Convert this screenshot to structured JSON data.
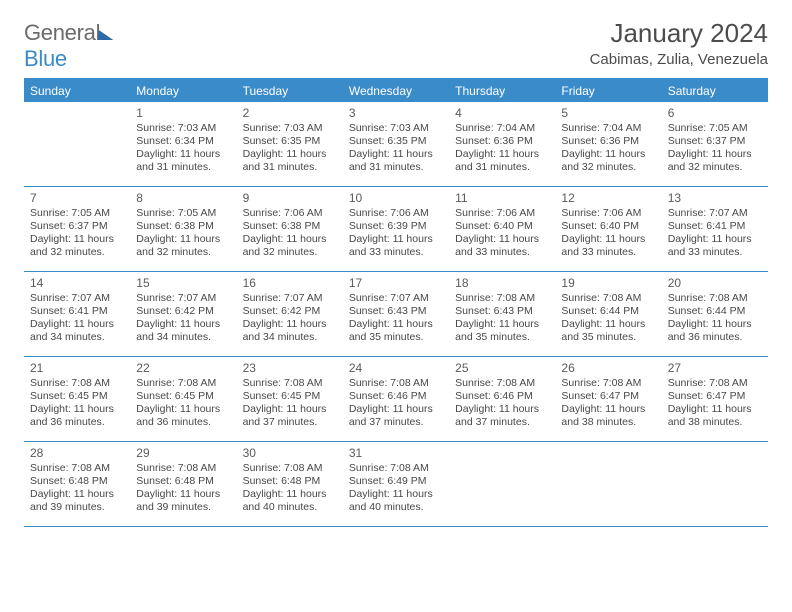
{
  "brand": {
    "general": "General",
    "blue": "Blue"
  },
  "title": "January 2024",
  "location": "Cabimas, Zulia, Venezuela",
  "colors": {
    "header_bg": "#3a8bc9",
    "header_text": "#ffffff",
    "rule": "#3a8bc9",
    "daynum": "#5a5a5a",
    "body_text": "#484848",
    "brand_gray": "#6b6b6b",
    "brand_blue": "#3a8bc9"
  },
  "weekdays": [
    "Sunday",
    "Monday",
    "Tuesday",
    "Wednesday",
    "Thursday",
    "Friday",
    "Saturday"
  ],
  "weeks": [
    [
      {
        "day": "",
        "sunrise": "",
        "sunset": "",
        "daylight": ""
      },
      {
        "day": "1",
        "sunrise": "Sunrise: 7:03 AM",
        "sunset": "Sunset: 6:34 PM",
        "daylight": "Daylight: 11 hours and 31 minutes."
      },
      {
        "day": "2",
        "sunrise": "Sunrise: 7:03 AM",
        "sunset": "Sunset: 6:35 PM",
        "daylight": "Daylight: 11 hours and 31 minutes."
      },
      {
        "day": "3",
        "sunrise": "Sunrise: 7:03 AM",
        "sunset": "Sunset: 6:35 PM",
        "daylight": "Daylight: 11 hours and 31 minutes."
      },
      {
        "day": "4",
        "sunrise": "Sunrise: 7:04 AM",
        "sunset": "Sunset: 6:36 PM",
        "daylight": "Daylight: 11 hours and 31 minutes."
      },
      {
        "day": "5",
        "sunrise": "Sunrise: 7:04 AM",
        "sunset": "Sunset: 6:36 PM",
        "daylight": "Daylight: 11 hours and 32 minutes."
      },
      {
        "day": "6",
        "sunrise": "Sunrise: 7:05 AM",
        "sunset": "Sunset: 6:37 PM",
        "daylight": "Daylight: 11 hours and 32 minutes."
      }
    ],
    [
      {
        "day": "7",
        "sunrise": "Sunrise: 7:05 AM",
        "sunset": "Sunset: 6:37 PM",
        "daylight": "Daylight: 11 hours and 32 minutes."
      },
      {
        "day": "8",
        "sunrise": "Sunrise: 7:05 AM",
        "sunset": "Sunset: 6:38 PM",
        "daylight": "Daylight: 11 hours and 32 minutes."
      },
      {
        "day": "9",
        "sunrise": "Sunrise: 7:06 AM",
        "sunset": "Sunset: 6:38 PM",
        "daylight": "Daylight: 11 hours and 32 minutes."
      },
      {
        "day": "10",
        "sunrise": "Sunrise: 7:06 AM",
        "sunset": "Sunset: 6:39 PM",
        "daylight": "Daylight: 11 hours and 33 minutes."
      },
      {
        "day": "11",
        "sunrise": "Sunrise: 7:06 AM",
        "sunset": "Sunset: 6:40 PM",
        "daylight": "Daylight: 11 hours and 33 minutes."
      },
      {
        "day": "12",
        "sunrise": "Sunrise: 7:06 AM",
        "sunset": "Sunset: 6:40 PM",
        "daylight": "Daylight: 11 hours and 33 minutes."
      },
      {
        "day": "13",
        "sunrise": "Sunrise: 7:07 AM",
        "sunset": "Sunset: 6:41 PM",
        "daylight": "Daylight: 11 hours and 33 minutes."
      }
    ],
    [
      {
        "day": "14",
        "sunrise": "Sunrise: 7:07 AM",
        "sunset": "Sunset: 6:41 PM",
        "daylight": "Daylight: 11 hours and 34 minutes."
      },
      {
        "day": "15",
        "sunrise": "Sunrise: 7:07 AM",
        "sunset": "Sunset: 6:42 PM",
        "daylight": "Daylight: 11 hours and 34 minutes."
      },
      {
        "day": "16",
        "sunrise": "Sunrise: 7:07 AM",
        "sunset": "Sunset: 6:42 PM",
        "daylight": "Daylight: 11 hours and 34 minutes."
      },
      {
        "day": "17",
        "sunrise": "Sunrise: 7:07 AM",
        "sunset": "Sunset: 6:43 PM",
        "daylight": "Daylight: 11 hours and 35 minutes."
      },
      {
        "day": "18",
        "sunrise": "Sunrise: 7:08 AM",
        "sunset": "Sunset: 6:43 PM",
        "daylight": "Daylight: 11 hours and 35 minutes."
      },
      {
        "day": "19",
        "sunrise": "Sunrise: 7:08 AM",
        "sunset": "Sunset: 6:44 PM",
        "daylight": "Daylight: 11 hours and 35 minutes."
      },
      {
        "day": "20",
        "sunrise": "Sunrise: 7:08 AM",
        "sunset": "Sunset: 6:44 PM",
        "daylight": "Daylight: 11 hours and 36 minutes."
      }
    ],
    [
      {
        "day": "21",
        "sunrise": "Sunrise: 7:08 AM",
        "sunset": "Sunset: 6:45 PM",
        "daylight": "Daylight: 11 hours and 36 minutes."
      },
      {
        "day": "22",
        "sunrise": "Sunrise: 7:08 AM",
        "sunset": "Sunset: 6:45 PM",
        "daylight": "Daylight: 11 hours and 36 minutes."
      },
      {
        "day": "23",
        "sunrise": "Sunrise: 7:08 AM",
        "sunset": "Sunset: 6:45 PM",
        "daylight": "Daylight: 11 hours and 37 minutes."
      },
      {
        "day": "24",
        "sunrise": "Sunrise: 7:08 AM",
        "sunset": "Sunset: 6:46 PM",
        "daylight": "Daylight: 11 hours and 37 minutes."
      },
      {
        "day": "25",
        "sunrise": "Sunrise: 7:08 AM",
        "sunset": "Sunset: 6:46 PM",
        "daylight": "Daylight: 11 hours and 37 minutes."
      },
      {
        "day": "26",
        "sunrise": "Sunrise: 7:08 AM",
        "sunset": "Sunset: 6:47 PM",
        "daylight": "Daylight: 11 hours and 38 minutes."
      },
      {
        "day": "27",
        "sunrise": "Sunrise: 7:08 AM",
        "sunset": "Sunset: 6:47 PM",
        "daylight": "Daylight: 11 hours and 38 minutes."
      }
    ],
    [
      {
        "day": "28",
        "sunrise": "Sunrise: 7:08 AM",
        "sunset": "Sunset: 6:48 PM",
        "daylight": "Daylight: 11 hours and 39 minutes."
      },
      {
        "day": "29",
        "sunrise": "Sunrise: 7:08 AM",
        "sunset": "Sunset: 6:48 PM",
        "daylight": "Daylight: 11 hours and 39 minutes."
      },
      {
        "day": "30",
        "sunrise": "Sunrise: 7:08 AM",
        "sunset": "Sunset: 6:48 PM",
        "daylight": "Daylight: 11 hours and 40 minutes."
      },
      {
        "day": "31",
        "sunrise": "Sunrise: 7:08 AM",
        "sunset": "Sunset: 6:49 PM",
        "daylight": "Daylight: 11 hours and 40 minutes."
      },
      {
        "day": "",
        "sunrise": "",
        "sunset": "",
        "daylight": ""
      },
      {
        "day": "",
        "sunrise": "",
        "sunset": "",
        "daylight": ""
      },
      {
        "day": "",
        "sunrise": "",
        "sunset": "",
        "daylight": ""
      }
    ]
  ]
}
